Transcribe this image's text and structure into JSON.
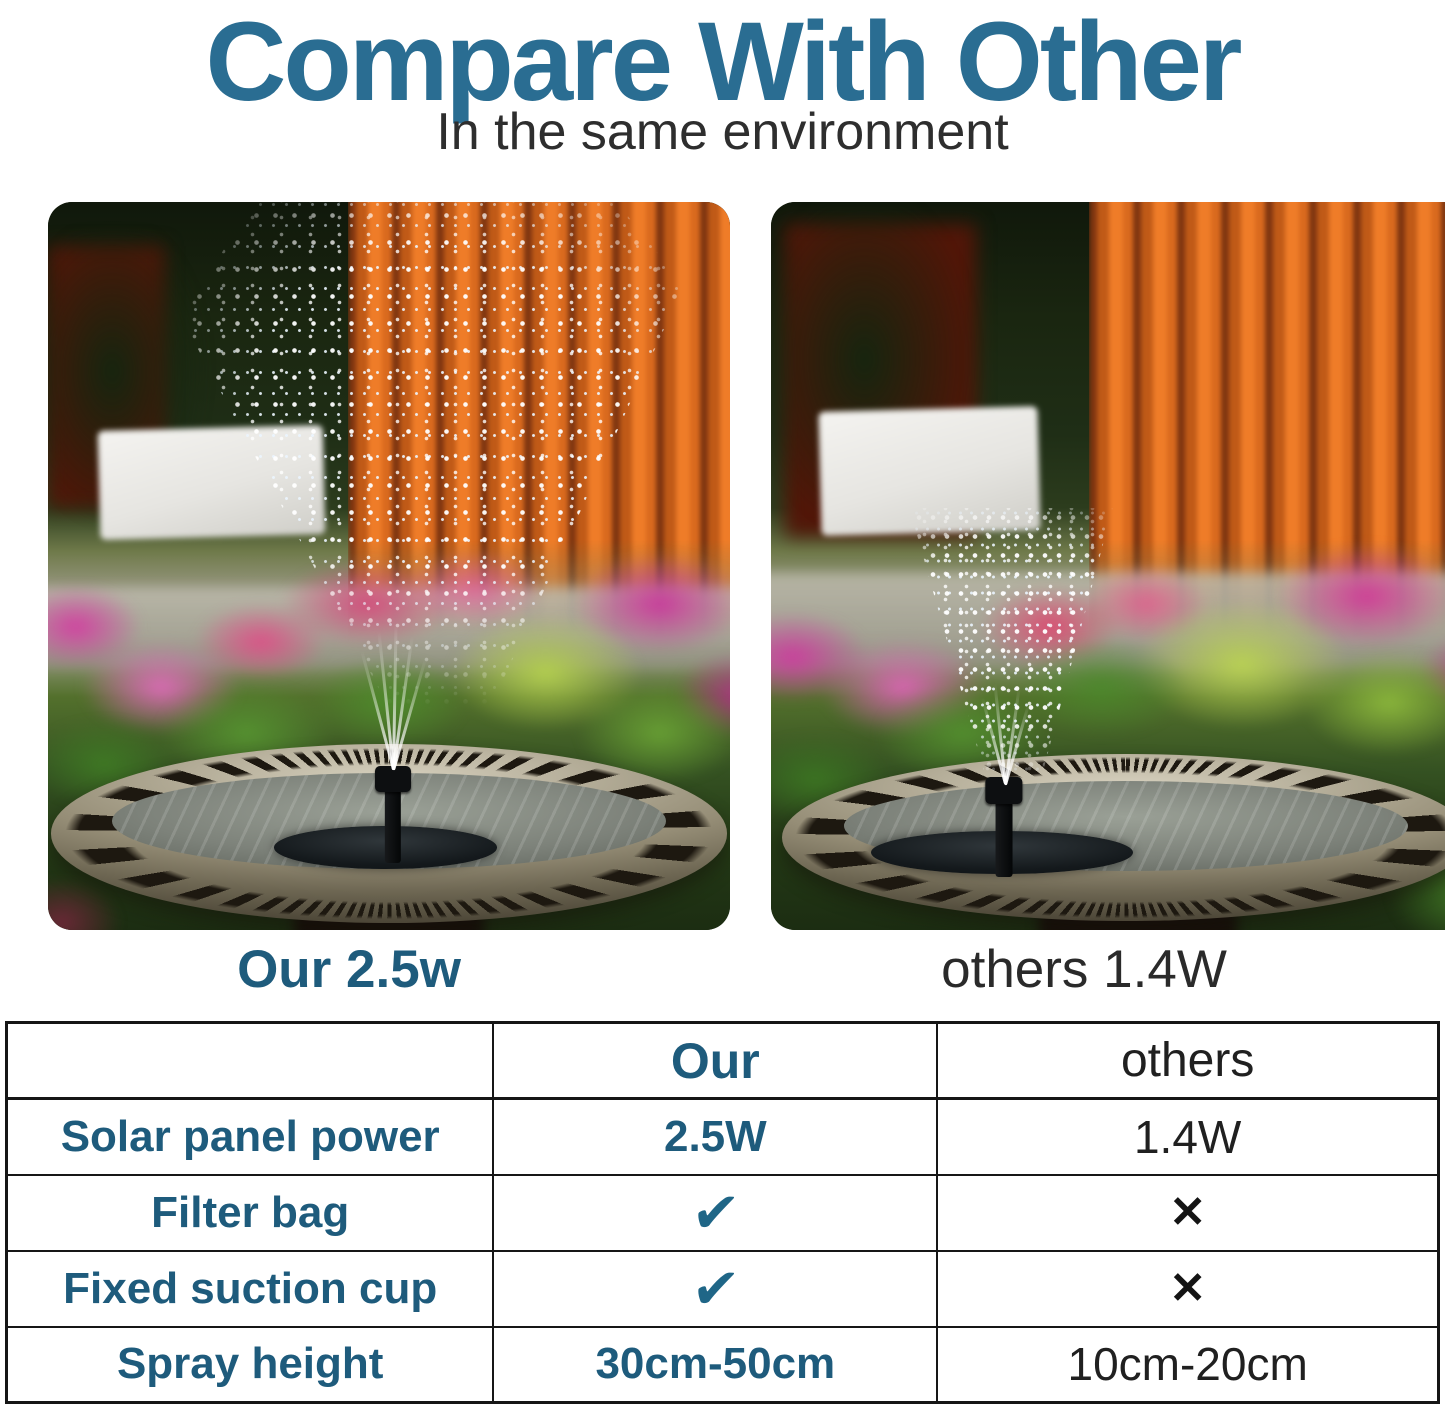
{
  "header": {
    "title": "Compare With Other",
    "subtitle": "In the same environment"
  },
  "labels": {
    "left": "Our 2.5w",
    "right": "others 1.4W"
  },
  "table": {
    "columns": [
      "",
      "Our",
      "others"
    ],
    "rows": [
      {
        "feature": "Solar panel power",
        "our": "2.5W",
        "others": "1.4W"
      },
      {
        "feature": "Filter bag",
        "our": "✔",
        "others": "✕"
      },
      {
        "feature": "Fixed suction cup",
        "our": "✔",
        "others": "✕"
      },
      {
        "feature": "Spray height",
        "our": "30cm-50cm",
        "others": "10cm-20cm"
      }
    ]
  },
  "icons": {
    "check": "checkmark-icon",
    "cross": "x-mark-icon"
  },
  "colors": {
    "title_teal": "#2a6d92",
    "accent_teal": "#1e5b7c",
    "text_dark": "#202020",
    "table_border": "#161616"
  }
}
